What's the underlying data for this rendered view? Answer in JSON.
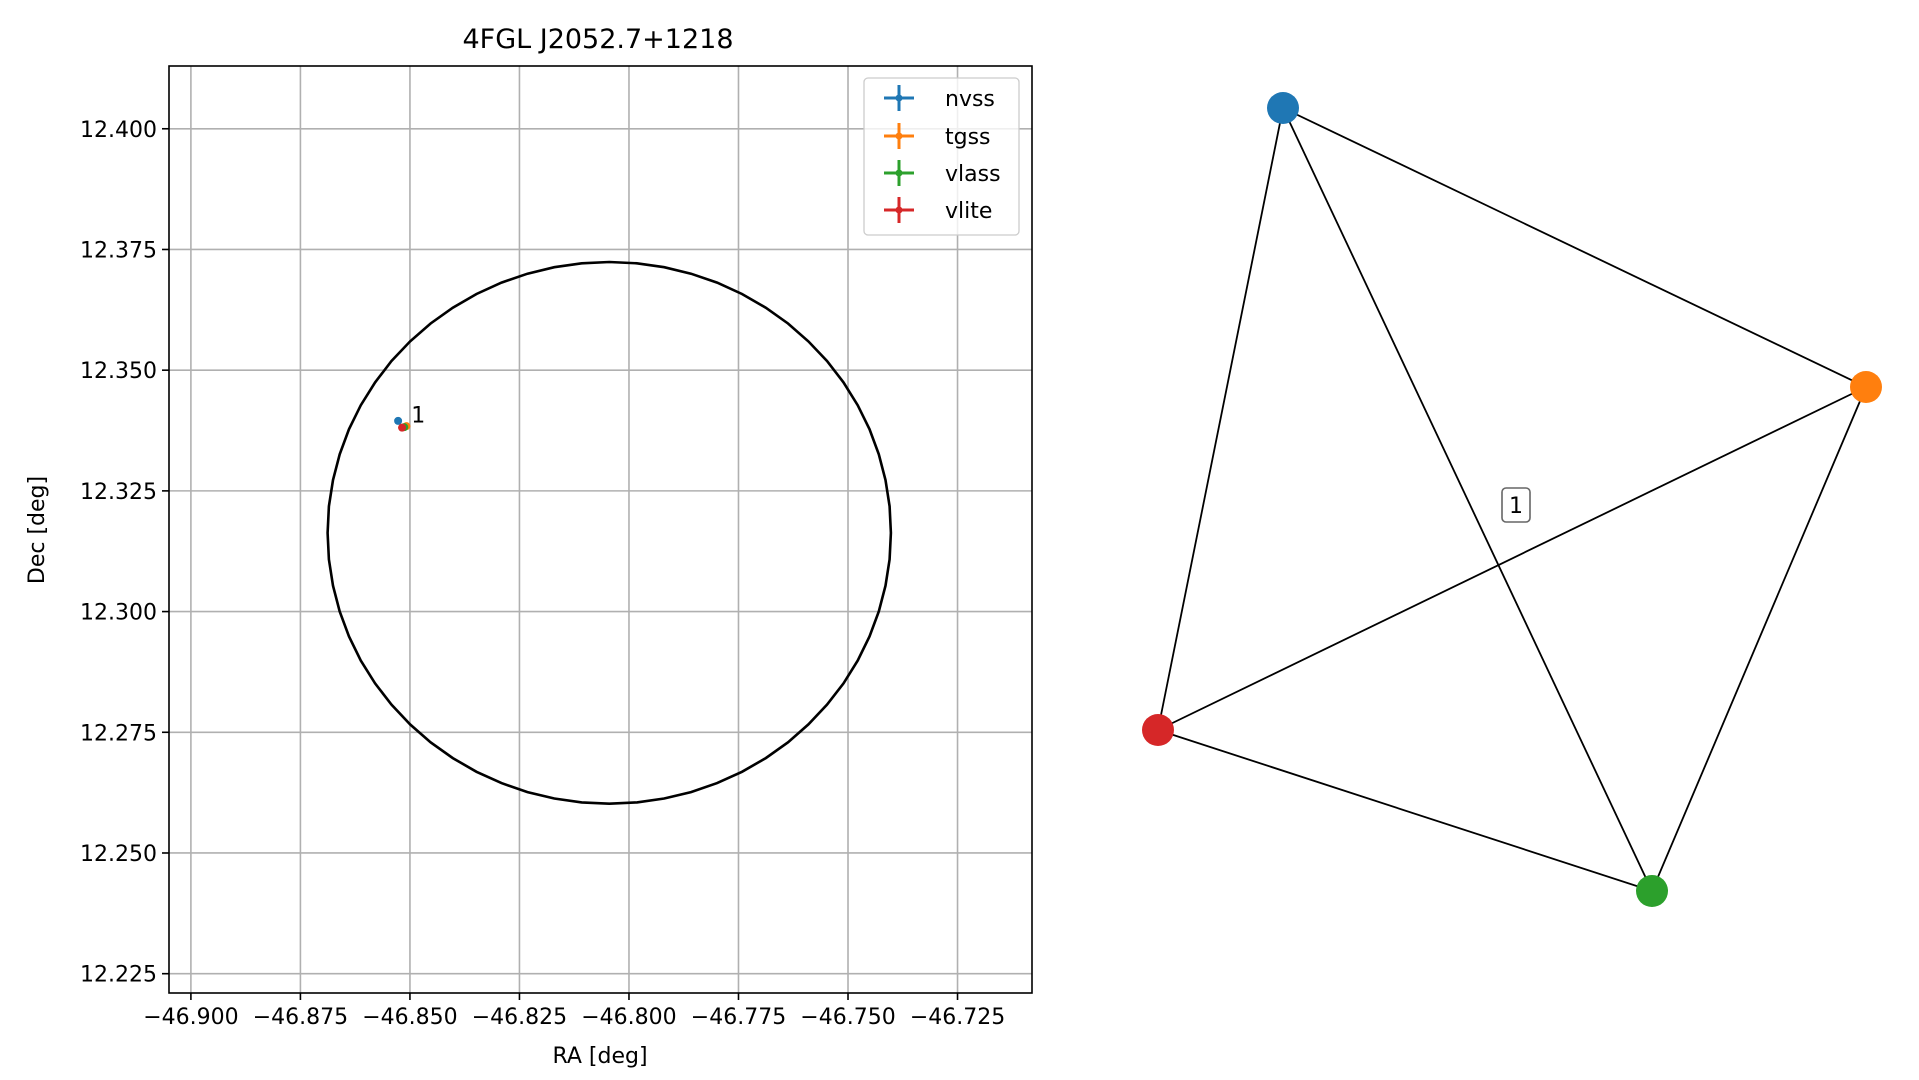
{
  "chart_data": [
    {
      "type": "scatter",
      "title": "4FGL J2052.7+1218",
      "xlabel": "RA [deg]",
      "ylabel": "Dec [deg]",
      "xlim": [
        -46.905,
        -46.708
      ],
      "ylim": [
        12.221,
        12.413
      ],
      "xticks": [
        -46.9,
        -46.875,
        -46.85,
        -46.825,
        -46.8,
        -46.775,
        -46.75,
        -46.725
      ],
      "xtick_labels": [
        "−46.900",
        "−46.875",
        "−46.850",
        "−46.825",
        "−46.800",
        "−46.775",
        "−46.750",
        "−46.725"
      ],
      "yticks": [
        12.225,
        12.25,
        12.275,
        12.3,
        12.325,
        12.35,
        12.375,
        12.4
      ],
      "ytick_labels": [
        "12.225",
        "12.250",
        "12.275",
        "12.300",
        "12.325",
        "12.350",
        "12.375",
        "12.400"
      ],
      "grid": true,
      "legend_position": "top-right",
      "series": [
        {
          "name": "nvss",
          "color": "#1f77b4",
          "points": [
            {
              "ra": -46.8527,
              "dec": 12.3395
            }
          ]
        },
        {
          "name": "tgss",
          "color": "#ff7f0e",
          "points": [
            {
              "ra": -46.8508,
              "dec": 12.3384
            }
          ]
        },
        {
          "name": "vlass",
          "color": "#2ca02c",
          "points": [
            {
              "ra": -46.8513,
              "dec": 12.3382
            }
          ]
        },
        {
          "name": "vlite",
          "color": "#d62728",
          "points": [
            {
              "ra": -46.8518,
              "dec": 12.3381
            }
          ]
        }
      ],
      "ellipse": {
        "center_ra": -46.8045,
        "center_dec": 12.3163,
        "semi_axis_ra": 0.0643,
        "semi_axis_dec": 0.0561,
        "color": "#000000"
      },
      "annotations": [
        {
          "text": "1",
          "ra": -46.8497,
          "dec": 12.3408
        }
      ]
    },
    {
      "type": "graph",
      "nodes": [
        {
          "id": "nvss",
          "color": "#1f77b4"
        },
        {
          "id": "tgss",
          "color": "#ff7f0e"
        },
        {
          "id": "vlass",
          "color": "#2ca02c"
        },
        {
          "id": "vlite",
          "color": "#d62728"
        }
      ],
      "edges": [
        [
          "nvss",
          "tgss"
        ],
        [
          "nvss",
          "vlass"
        ],
        [
          "nvss",
          "vlite"
        ],
        [
          "tgss",
          "vlass"
        ],
        [
          "tgss",
          "vlite"
        ],
        [
          "vlass",
          "vlite"
        ]
      ],
      "label": "1"
    }
  ]
}
